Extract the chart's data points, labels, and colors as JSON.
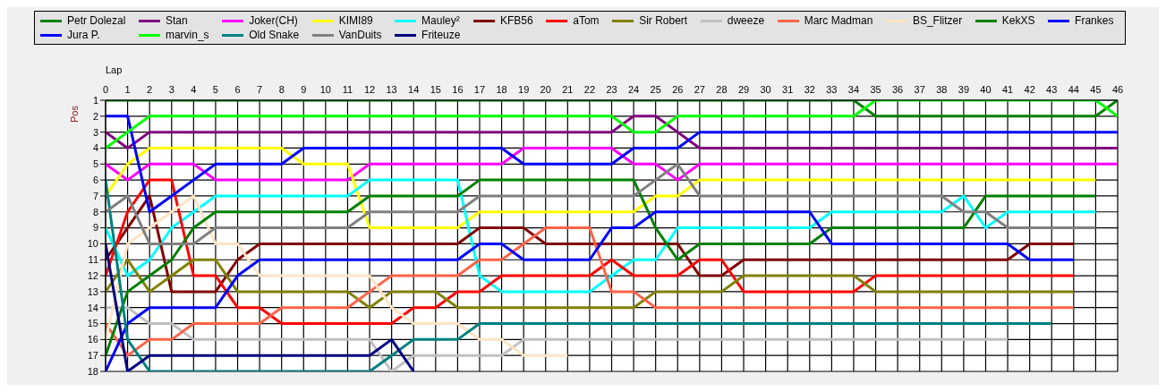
{
  "chart_data": {
    "type": "line",
    "xlabel": "Lap",
    "ylabel": "Pos",
    "legend": "top",
    "grid": true,
    "x": [
      0,
      1,
      2,
      3,
      4,
      5,
      6,
      7,
      8,
      9,
      10,
      11,
      12,
      13,
      14,
      15,
      16,
      17,
      18,
      19,
      20,
      21,
      22,
      23,
      24,
      25,
      26,
      27,
      28,
      29,
      30,
      31,
      32,
      33,
      34,
      35,
      36,
      37,
      38,
      39,
      40,
      41,
      42,
      43,
      44,
      45,
      46
    ],
    "xlim": [
      0,
      46
    ],
    "xticks": [
      0,
      1,
      2,
      3,
      4,
      5,
      6,
      7,
      8,
      9,
      10,
      11,
      12,
      13,
      14,
      15,
      16,
      17,
      18,
      19,
      20,
      21,
      22,
      23,
      24,
      25,
      26,
      27,
      28,
      29,
      30,
      31,
      32,
      33,
      34,
      35,
      36,
      37,
      38,
      39,
      40,
      41,
      42,
      43,
      44,
      45,
      46
    ],
    "ylim": [
      18,
      1
    ],
    "yticks": [
      1,
      2,
      3,
      4,
      5,
      6,
      7,
      8,
      9,
      10,
      11,
      12,
      13,
      14,
      15,
      16,
      17,
      18
    ],
    "series": [
      {
        "name": "Petr Dolezal",
        "color": "#008000",
        "values": [
          1,
          1,
          1,
          1,
          1,
          1,
          1,
          1,
          1,
          1,
          1,
          1,
          1,
          1,
          1,
          1,
          1,
          1,
          1,
          1,
          1,
          1,
          1,
          1,
          1,
          1,
          1,
          1,
          1,
          1,
          1,
          1,
          1,
          1,
          1,
          2,
          2,
          2,
          2,
          2,
          2,
          2,
          2,
          2,
          2,
          2,
          1
        ]
      },
      {
        "name": "Stan",
        "color": "#800080",
        "values": [
          3,
          4,
          3,
          3,
          3,
          3,
          3,
          3,
          3,
          3,
          3,
          3,
          3,
          3,
          3,
          3,
          3,
          3,
          3,
          3,
          3,
          3,
          3,
          3,
          2,
          2,
          3,
          4,
          4,
          4,
          4,
          4,
          4,
          4,
          4,
          4,
          4,
          4,
          4,
          4,
          4,
          4,
          4,
          4,
          4,
          4,
          4
        ]
      },
      {
        "name": "Joker(CH)",
        "color": "#ff00ff",
        "values": [
          5,
          6,
          5,
          5,
          5,
          6,
          6,
          6,
          6,
          6,
          6,
          6,
          5,
          5,
          5,
          5,
          5,
          5,
          5,
          4,
          4,
          4,
          4,
          4,
          5,
          5,
          6,
          5,
          5,
          5,
          5,
          5,
          5,
          5,
          5,
          5,
          5,
          5,
          5,
          5,
          5,
          5,
          5,
          5,
          5,
          5,
          5
        ]
      },
      {
        "name": "KIMI89",
        "color": "#ffff00",
        "values": [
          7,
          5,
          4,
          4,
          4,
          4,
          4,
          4,
          4,
          5,
          5,
          5,
          9,
          9,
          9,
          9,
          9,
          8,
          8,
          8,
          8,
          8,
          8,
          8,
          8,
          7,
          7,
          6,
          6,
          6,
          6,
          6,
          6,
          6,
          6,
          6,
          6,
          6,
          6,
          6,
          6,
          6,
          6,
          6,
          6,
          6,
          null
        ]
      },
      {
        "name": "Mauley²",
        "color": "#00ffff",
        "values": [
          9,
          12,
          11,
          9,
          8,
          7,
          7,
          7,
          7,
          7,
          7,
          7,
          6,
          6,
          6,
          6,
          6,
          12,
          13,
          13,
          13,
          13,
          13,
          12,
          11,
          11,
          9,
          9,
          9,
          9,
          9,
          9,
          9,
          8,
          8,
          8,
          8,
          8,
          8,
          7,
          9,
          8,
          8,
          8,
          8,
          8,
          null
        ]
      },
      {
        "name": "KFB56",
        "color": "#800000",
        "values": [
          11,
          9,
          7,
          13,
          13,
          13,
          11,
          10,
          10,
          10,
          10,
          10,
          10,
          10,
          10,
          10,
          10,
          9,
          9,
          9,
          10,
          10,
          10,
          10,
          10,
          10,
          10,
          12,
          12,
          11,
          11,
          11,
          11,
          11,
          11,
          11,
          11,
          11,
          11,
          11,
          11,
          11,
          10,
          10,
          10,
          null,
          null
        ]
      },
      {
        "name": "aTom",
        "color": "#ff0000",
        "values": [
          12,
          8,
          6,
          6,
          12,
          12,
          14,
          14,
          15,
          15,
          15,
          15,
          15,
          15,
          14,
          14,
          13,
          13,
          12,
          12,
          12,
          12,
          12,
          11,
          12,
          12,
          12,
          11,
          11,
          13,
          13,
          13,
          13,
          13,
          13,
          12,
          12,
          12,
          12,
          12,
          12,
          12,
          12,
          12,
          12,
          null,
          null
        ]
      },
      {
        "name": "Sir Robert",
        "color": "#808000",
        "values": [
          13,
          11,
          13,
          12,
          11,
          11,
          13,
          13,
          13,
          13,
          13,
          13,
          14,
          13,
          13,
          13,
          14,
          14,
          14,
          14,
          14,
          14,
          14,
          14,
          14,
          13,
          13,
          13,
          13,
          12,
          12,
          12,
          12,
          12,
          12,
          13,
          13,
          13,
          13,
          13,
          13,
          13,
          13,
          13,
          13,
          null,
          null
        ]
      },
      {
        "name": "dweeze",
        "color": "#c0c0c0",
        "values": [
          14,
          14,
          15,
          15,
          16,
          16,
          16,
          16,
          16,
          16,
          16,
          16,
          16,
          18,
          17,
          17,
          17,
          17,
          17,
          16,
          16,
          16,
          16,
          16,
          16,
          16,
          16,
          16,
          16,
          16,
          16,
          16,
          16,
          16,
          16,
          16,
          16,
          16,
          16,
          16,
          16,
          16,
          null,
          null,
          null,
          null,
          null
        ]
      },
      {
        "name": "Marc Madman",
        "color": "#ff6347",
        "values": [
          15,
          17,
          16,
          16,
          15,
          15,
          15,
          15,
          14,
          14,
          14,
          14,
          13,
          12,
          12,
          12,
          12,
          11,
          11,
          10,
          9,
          9,
          9,
          13,
          13,
          14,
          14,
          14,
          14,
          14,
          14,
          14,
          14,
          14,
          14,
          14,
          14,
          14,
          14,
          14,
          14,
          14,
          14,
          14,
          14,
          null,
          null
        ]
      },
      {
        "name": "BS_Flitzer",
        "color": "#ffe4c4",
        "values": [
          16,
          10,
          9,
          8,
          7,
          10,
          10,
          12,
          12,
          12,
          12,
          12,
          12,
          14,
          15,
          15,
          15,
          16,
          16,
          17,
          17,
          17,
          null,
          null,
          null,
          null,
          null,
          null,
          null,
          null,
          null,
          null,
          null,
          null,
          null,
          null,
          null,
          null,
          null,
          null,
          null,
          null,
          null,
          null,
          null,
          null,
          null
        ]
      },
      {
        "name": "KekXS",
        "color": "#008000",
        "values": [
          17,
          13,
          12,
          11,
          9,
          8,
          8,
          8,
          8,
          8,
          8,
          8,
          7,
          7,
          7,
          7,
          7,
          6,
          6,
          6,
          6,
          6,
          6,
          6,
          6,
          9,
          11,
          10,
          10,
          10,
          10,
          10,
          10,
          9,
          9,
          9,
          9,
          9,
          9,
          9,
          7,
          7,
          7,
          7,
          7,
          7,
          null
        ]
      },
      {
        "name": "Frankes",
        "color": "#0000ff",
        "values": [
          18,
          15,
          14,
          14,
          14,
          14,
          12,
          11,
          11,
          11,
          11,
          11,
          11,
          11,
          11,
          11,
          11,
          10,
          10,
          11,
          11,
          11,
          11,
          9,
          9,
          8,
          8,
          8,
          8,
          8,
          8,
          8,
          8,
          10,
          10,
          10,
          10,
          10,
          10,
          10,
          10,
          10,
          11,
          11,
          11,
          null,
          null
        ]
      },
      {
        "name": "Jura P.",
        "color": "#0000ff",
        "values": [
          2,
          2,
          8,
          7,
          6,
          5,
          5,
          5,
          5,
          4,
          4,
          4,
          4,
          4,
          4,
          4,
          4,
          4,
          4,
          5,
          5,
          5,
          5,
          5,
          4,
          4,
          4,
          3,
          3,
          3,
          3,
          3,
          3,
          3,
          3,
          3,
          3,
          3,
          3,
          3,
          3,
          3,
          3,
          3,
          3,
          3,
          3
        ]
      },
      {
        "name": "marvin_s",
        "color": "#00ff00",
        "values": [
          4,
          3,
          2,
          2,
          2,
          2,
          2,
          2,
          2,
          2,
          2,
          2,
          2,
          2,
          2,
          2,
          2,
          2,
          2,
          2,
          2,
          2,
          2,
          2,
          3,
          3,
          2,
          2,
          2,
          2,
          2,
          2,
          2,
          2,
          2,
          1,
          1,
          1,
          1,
          1,
          1,
          1,
          1,
          1,
          1,
          1,
          2
        ]
      },
      {
        "name": "Old Snake",
        "color": "#008080",
        "values": [
          6,
          16,
          18,
          18,
          18,
          18,
          18,
          18,
          18,
          18,
          18,
          18,
          18,
          17,
          16,
          16,
          16,
          15,
          15,
          15,
          15,
          15,
          15,
          15,
          15,
          15,
          15,
          15,
          15,
          15,
          15,
          15,
          15,
          15,
          15,
          15,
          15,
          15,
          15,
          15,
          15,
          15,
          15,
          15,
          null,
          null,
          null
        ]
      },
      {
        "name": "VanDuits",
        "color": "#808080",
        "values": [
          8,
          7,
          10,
          10,
          10,
          9,
          9,
          9,
          9,
          9,
          9,
          9,
          8,
          8,
          8,
          8,
          8,
          7,
          7,
          7,
          7,
          7,
          7,
          7,
          7,
          6,
          5,
          7,
          7,
          7,
          7,
          7,
          7,
          7,
          7,
          7,
          7,
          7,
          7,
          8,
          8,
          9,
          9,
          9,
          9,
          9,
          null
        ]
      },
      {
        "name": "Friteuze",
        "color": "#000080",
        "values": [
          10,
          18,
          17,
          17,
          17,
          17,
          17,
          17,
          17,
          17,
          17,
          17,
          17,
          16,
          18,
          null,
          null,
          null,
          null,
          null,
          null,
          null,
          null,
          null,
          null,
          null,
          null,
          null,
          null,
          null,
          null,
          null,
          null,
          null,
          null,
          null,
          null,
          null,
          null,
          null,
          null,
          null,
          null,
          null,
          null,
          null,
          null
        ]
      }
    ]
  }
}
